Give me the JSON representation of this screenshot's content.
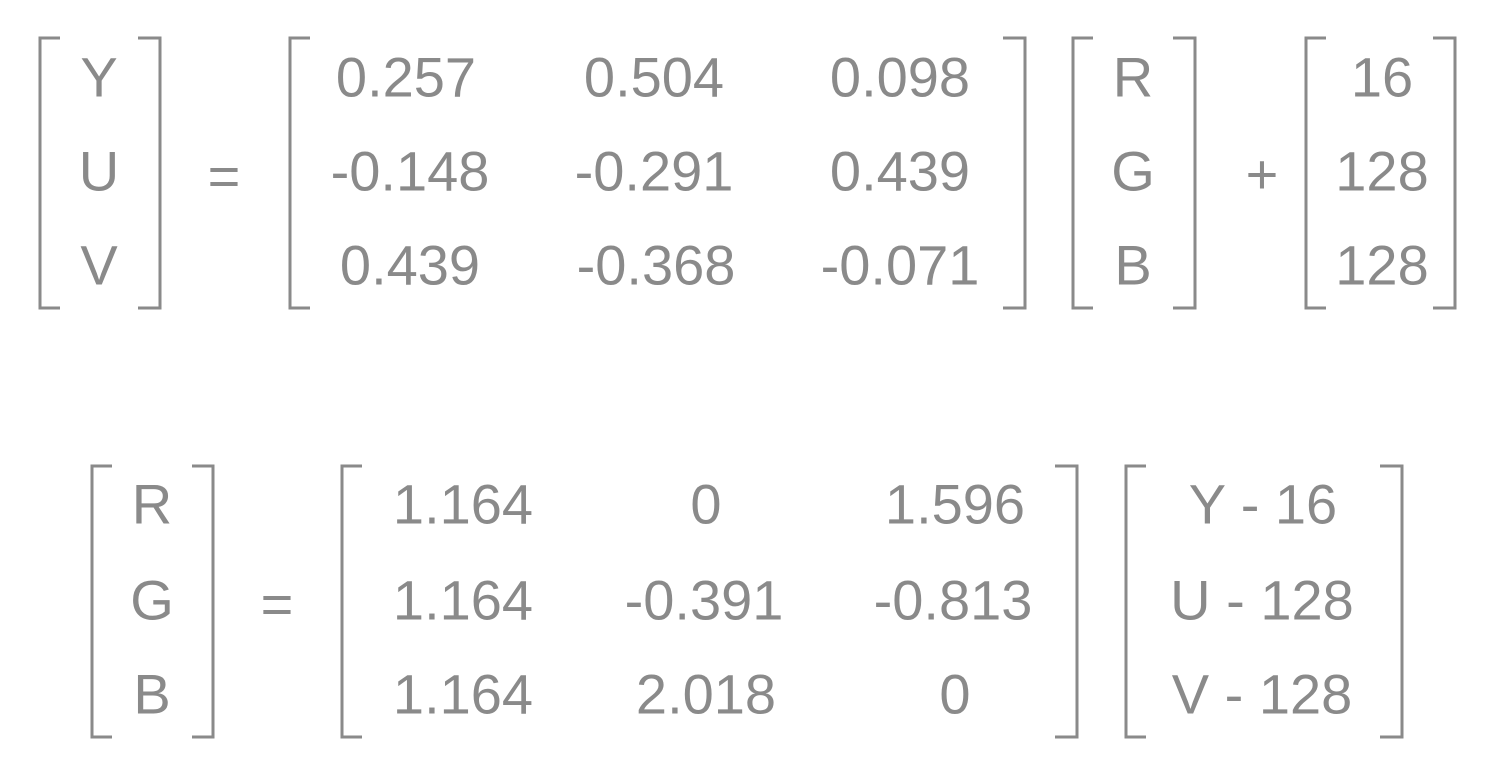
{
  "colors": {
    "ink": "#8a8a8a",
    "background": "#ffffff"
  },
  "equation_rgb_to_yuv": {
    "lhs": [
      "Y",
      "U",
      "V"
    ],
    "equals": "=",
    "matrix": [
      [
        "0.257",
        "0.504",
        "0.098"
      ],
      [
        "-0.148",
        "-0.291",
        "0.439"
      ],
      [
        "0.439",
        "-0.368",
        "-0.071"
      ]
    ],
    "vector": [
      "R",
      "G",
      "B"
    ],
    "plus": "+",
    "offset": [
      "16",
      "128",
      "128"
    ]
  },
  "equation_yuv_to_rgb": {
    "lhs": [
      "R",
      "G",
      "B"
    ],
    "equals": "=",
    "matrix": [
      [
        "1.164",
        "0",
        "1.596"
      ],
      [
        "1.164",
        "-0.391",
        "-0.813"
      ],
      [
        "1.164",
        "2.018",
        "0"
      ]
    ],
    "vector": [
      "Y - 16",
      "U - 128",
      "V - 128"
    ]
  }
}
